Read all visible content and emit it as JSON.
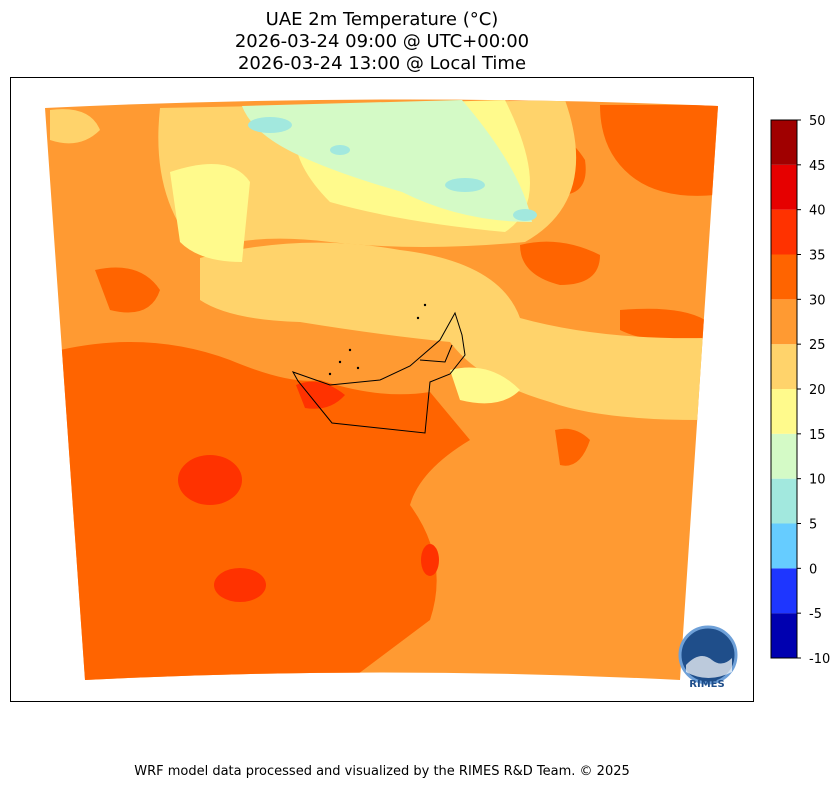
{
  "title": [
    "UAE 2m Temperature (°C)",
    "2026-03-24 09:00 @ UTC+00:00",
    "2026-03-24 13:00 @ Local Time"
  ],
  "colorbar": {
    "lim": [
      -10,
      50
    ],
    "ticks": [
      -10,
      -5,
      0,
      5,
      10,
      15,
      20,
      25,
      30,
      35,
      40,
      45,
      50
    ],
    "colors": [
      "#0000b0",
      "#1e36ff",
      "#66ccff",
      "#a2e8de",
      "#d4fac6",
      "#fffa8c",
      "#ffd36b",
      "#ff9a32",
      "#ff6400",
      "#ff3200",
      "#e60000",
      "#a00000"
    ]
  },
  "logo": {
    "text": "RIMES"
  },
  "footer": "WRF model data processed and visualized by the RIMES R&D Team. © 2025"
}
